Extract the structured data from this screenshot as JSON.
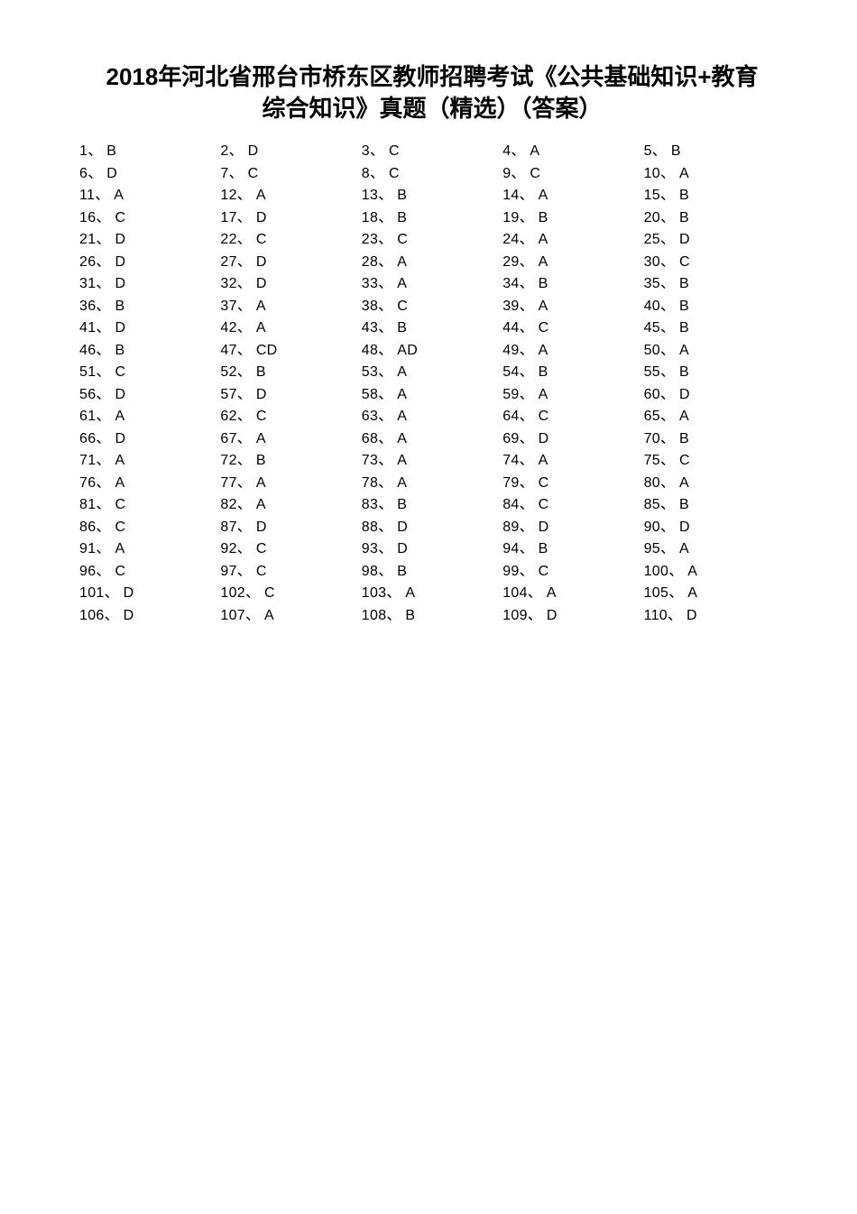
{
  "title_line1": "2018年河北省邢台市桥东区教师招聘考试《公共基础知识+教育",
  "title_line2": "综合知识》真题（精选）（答案）",
  "separator": "、",
  "answers": [
    {
      "n": 1,
      "a": "B"
    },
    {
      "n": 2,
      "a": "D"
    },
    {
      "n": 3,
      "a": "C"
    },
    {
      "n": 4,
      "a": "A"
    },
    {
      "n": 5,
      "a": "B"
    },
    {
      "n": 6,
      "a": "D"
    },
    {
      "n": 7,
      "a": "C"
    },
    {
      "n": 8,
      "a": "C"
    },
    {
      "n": 9,
      "a": "C"
    },
    {
      "n": 10,
      "a": "A"
    },
    {
      "n": 11,
      "a": "A"
    },
    {
      "n": 12,
      "a": "A"
    },
    {
      "n": 13,
      "a": "B"
    },
    {
      "n": 14,
      "a": "A"
    },
    {
      "n": 15,
      "a": "B"
    },
    {
      "n": 16,
      "a": "C"
    },
    {
      "n": 17,
      "a": "D"
    },
    {
      "n": 18,
      "a": "B"
    },
    {
      "n": 19,
      "a": "B"
    },
    {
      "n": 20,
      "a": "B"
    },
    {
      "n": 21,
      "a": "D"
    },
    {
      "n": 22,
      "a": "C"
    },
    {
      "n": 23,
      "a": "C"
    },
    {
      "n": 24,
      "a": "A"
    },
    {
      "n": 25,
      "a": "D"
    },
    {
      "n": 26,
      "a": "D"
    },
    {
      "n": 27,
      "a": "D"
    },
    {
      "n": 28,
      "a": "A"
    },
    {
      "n": 29,
      "a": "A"
    },
    {
      "n": 30,
      "a": "C"
    },
    {
      "n": 31,
      "a": "D"
    },
    {
      "n": 32,
      "a": "D"
    },
    {
      "n": 33,
      "a": "A"
    },
    {
      "n": 34,
      "a": "B"
    },
    {
      "n": 35,
      "a": "B"
    },
    {
      "n": 36,
      "a": "B"
    },
    {
      "n": 37,
      "a": "A"
    },
    {
      "n": 38,
      "a": "C"
    },
    {
      "n": 39,
      "a": "A"
    },
    {
      "n": 40,
      "a": "B"
    },
    {
      "n": 41,
      "a": "D"
    },
    {
      "n": 42,
      "a": "A"
    },
    {
      "n": 43,
      "a": "B"
    },
    {
      "n": 44,
      "a": "C"
    },
    {
      "n": 45,
      "a": "B"
    },
    {
      "n": 46,
      "a": "B"
    },
    {
      "n": 47,
      "a": "CD"
    },
    {
      "n": 48,
      "a": "AD"
    },
    {
      "n": 49,
      "a": "A"
    },
    {
      "n": 50,
      "a": "A"
    },
    {
      "n": 51,
      "a": "C"
    },
    {
      "n": 52,
      "a": "B"
    },
    {
      "n": 53,
      "a": "A"
    },
    {
      "n": 54,
      "a": "B"
    },
    {
      "n": 55,
      "a": "B"
    },
    {
      "n": 56,
      "a": "D"
    },
    {
      "n": 57,
      "a": "D"
    },
    {
      "n": 58,
      "a": "A"
    },
    {
      "n": 59,
      "a": "A"
    },
    {
      "n": 60,
      "a": "D"
    },
    {
      "n": 61,
      "a": "A"
    },
    {
      "n": 62,
      "a": "C"
    },
    {
      "n": 63,
      "a": "A"
    },
    {
      "n": 64,
      "a": "C"
    },
    {
      "n": 65,
      "a": "A"
    },
    {
      "n": 66,
      "a": "D"
    },
    {
      "n": 67,
      "a": "A"
    },
    {
      "n": 68,
      "a": "A"
    },
    {
      "n": 69,
      "a": "D"
    },
    {
      "n": 70,
      "a": "B"
    },
    {
      "n": 71,
      "a": "A"
    },
    {
      "n": 72,
      "a": "B"
    },
    {
      "n": 73,
      "a": "A"
    },
    {
      "n": 74,
      "a": "A"
    },
    {
      "n": 75,
      "a": "C"
    },
    {
      "n": 76,
      "a": "A"
    },
    {
      "n": 77,
      "a": "A"
    },
    {
      "n": 78,
      "a": "A"
    },
    {
      "n": 79,
      "a": "C"
    },
    {
      "n": 80,
      "a": "A"
    },
    {
      "n": 81,
      "a": "C"
    },
    {
      "n": 82,
      "a": "A"
    },
    {
      "n": 83,
      "a": "B"
    },
    {
      "n": 84,
      "a": "C"
    },
    {
      "n": 85,
      "a": "B"
    },
    {
      "n": 86,
      "a": "C"
    },
    {
      "n": 87,
      "a": "D"
    },
    {
      "n": 88,
      "a": "D"
    },
    {
      "n": 89,
      "a": "D"
    },
    {
      "n": 90,
      "a": "D"
    },
    {
      "n": 91,
      "a": "A"
    },
    {
      "n": 92,
      "a": "C"
    },
    {
      "n": 93,
      "a": "D"
    },
    {
      "n": 94,
      "a": "B"
    },
    {
      "n": 95,
      "a": "A"
    },
    {
      "n": 96,
      "a": "C"
    },
    {
      "n": 97,
      "a": "C"
    },
    {
      "n": 98,
      "a": "B"
    },
    {
      "n": 99,
      "a": "C"
    },
    {
      "n": 100,
      "a": "A"
    },
    {
      "n": 101,
      "a": "D"
    },
    {
      "n": 102,
      "a": "C"
    },
    {
      "n": 103,
      "a": "A"
    },
    {
      "n": 104,
      "a": "A"
    },
    {
      "n": 105,
      "a": "A"
    },
    {
      "n": 106,
      "a": "D"
    },
    {
      "n": 107,
      "a": "A"
    },
    {
      "n": 108,
      "a": "B"
    },
    {
      "n": 109,
      "a": "D"
    },
    {
      "n": 110,
      "a": "D"
    }
  ]
}
